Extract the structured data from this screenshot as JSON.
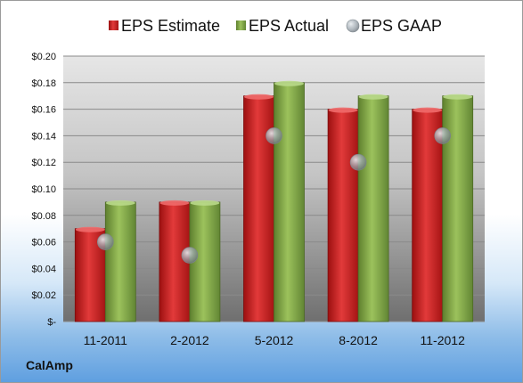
{
  "company": "CalAmp",
  "chart_data": {
    "type": "bar",
    "categories": [
      "11-2011",
      "2-2012",
      "5-2012",
      "8-2012",
      "11-2012"
    ],
    "series": [
      {
        "name": "EPS Estimate",
        "kind": "bar",
        "color": "#d42a2a",
        "values": [
          0.07,
          0.09,
          0.17,
          0.16,
          0.16
        ]
      },
      {
        "name": "EPS Actual",
        "kind": "bar",
        "color": "#86ad4c",
        "values": [
          0.09,
          0.09,
          0.18,
          0.17,
          0.17
        ]
      },
      {
        "name": "EPS GAAP",
        "kind": "marker",
        "color": "#9aa4ac",
        "values": [
          0.06,
          0.05,
          0.14,
          0.12,
          0.14
        ]
      }
    ],
    "ylim": [
      0,
      0.2
    ],
    "yticks": [
      0,
      0.02,
      0.04,
      0.06,
      0.08,
      0.1,
      0.12,
      0.14,
      0.16,
      0.18,
      0.2
    ],
    "ytick_labels": [
      "$-",
      "$0.02",
      "$0.04",
      "$0.06",
      "$0.08",
      "$0.10",
      "$0.12",
      "$0.14",
      "$0.16",
      "$0.18",
      "$0.20"
    ],
    "grid": true,
    "legend_position": "top"
  }
}
